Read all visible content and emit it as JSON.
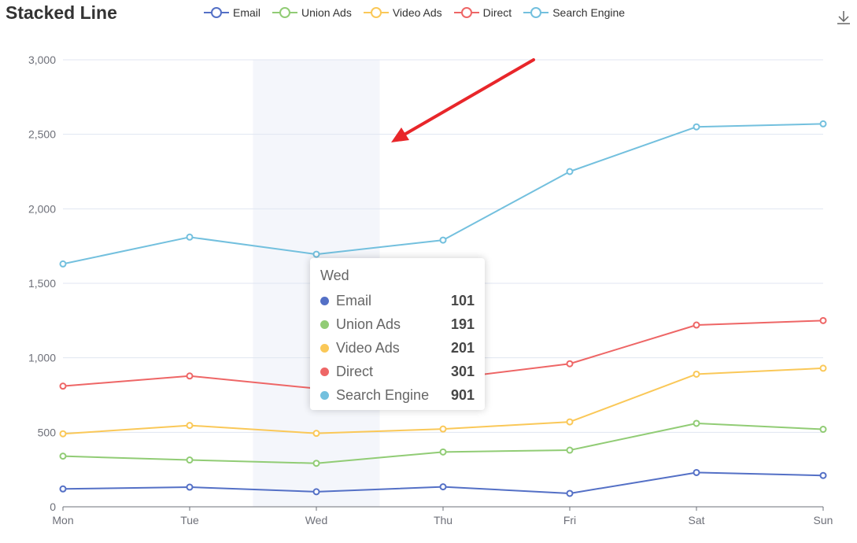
{
  "chart_data": {
    "type": "line",
    "title": "Stacked Line",
    "stacked": true,
    "categories": [
      "Mon",
      "Tue",
      "Wed",
      "Thu",
      "Fri",
      "Sat",
      "Sun"
    ],
    "series": [
      {
        "name": "Email",
        "color": "#5470c6",
        "values": [
          120,
          132,
          101,
          134,
          90,
          230,
          210
        ]
      },
      {
        "name": "Union Ads",
        "color": "#91cc75",
        "values": [
          220,
          182,
          191,
          234,
          290,
          330,
          310
        ]
      },
      {
        "name": "Video Ads",
        "color": "#fac858",
        "values": [
          150,
          232,
          201,
          154,
          190,
          330,
          410
        ]
      },
      {
        "name": "Direct",
        "color": "#ee6666",
        "values": [
          320,
          332,
          301,
          334,
          390,
          330,
          320
        ]
      },
      {
        "name": "Search Engine",
        "color": "#73c0de",
        "values": [
          820,
          932,
          901,
          934,
          1290,
          1330,
          1320
        ]
      }
    ],
    "y_ticks": [
      "0",
      "500",
      "1,000",
      "1,500",
      "2,000",
      "2,500",
      "3,000"
    ],
    "ylim": [
      0,
      3000
    ],
    "grid": "horizontal",
    "legend_position": "top",
    "highlighted_category": "Wed",
    "tooltip": {
      "title": "Wed",
      "rows": [
        {
          "name": "Email",
          "color": "#5470c6",
          "value": "101"
        },
        {
          "name": "Union Ads",
          "color": "#91cc75",
          "value": "191"
        },
        {
          "name": "Video Ads",
          "color": "#fac858",
          "value": "201"
        },
        {
          "name": "Direct",
          "color": "#ee6666",
          "value": "301"
        },
        {
          "name": "Search Engine",
          "color": "#73c0de",
          "value": "901"
        }
      ]
    },
    "annotation_color": "#e8262a"
  },
  "toolbar": {
    "download_icon": "download-icon"
  }
}
